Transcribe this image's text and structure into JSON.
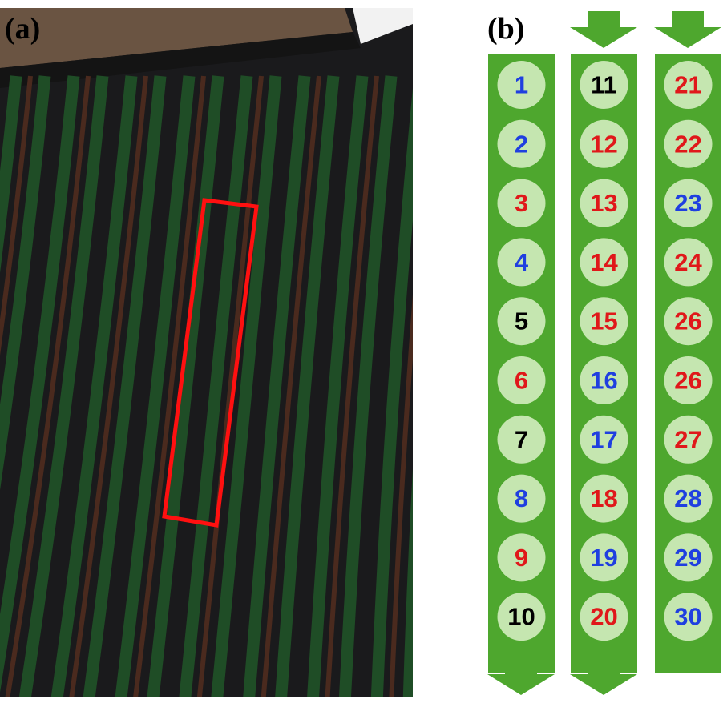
{
  "panels": {
    "a": {
      "label": "(a)"
    },
    "b": {
      "label": "(b)",
      "columns": [
        {
          "cells": [
            {
              "label": "1",
              "color": "#1f3fe0"
            },
            {
              "label": "2",
              "color": "#1f3fe0"
            },
            {
              "label": "3",
              "color": "#e0181a"
            },
            {
              "label": "4",
              "color": "#1f3fe0"
            },
            {
              "label": "5",
              "color": "#000000"
            },
            {
              "label": "6",
              "color": "#e0181a"
            },
            {
              "label": "7",
              "color": "#000000"
            },
            {
              "label": "8",
              "color": "#1f3fe0"
            },
            {
              "label": "9",
              "color": "#e0181a"
            },
            {
              "label": "10",
              "color": "#000000"
            }
          ]
        },
        {
          "cells": [
            {
              "label": "11",
              "color": "#000000"
            },
            {
              "label": "12",
              "color": "#e0181a"
            },
            {
              "label": "13",
              "color": "#e0181a"
            },
            {
              "label": "14",
              "color": "#e0181a"
            },
            {
              "label": "15",
              "color": "#e0181a"
            },
            {
              "label": "16",
              "color": "#1f3fe0"
            },
            {
              "label": "17",
              "color": "#1f3fe0"
            },
            {
              "label": "18",
              "color": "#e0181a"
            },
            {
              "label": "19",
              "color": "#1f3fe0"
            },
            {
              "label": "20",
              "color": "#e0181a"
            }
          ]
        },
        {
          "cells": [
            {
              "label": "21",
              "color": "#e0181a"
            },
            {
              "label": "22",
              "color": "#e0181a"
            },
            {
              "label": "23",
              "color": "#1f3fe0"
            },
            {
              "label": "24",
              "color": "#e0181a"
            },
            {
              "label": "26",
              "color": "#e0181a"
            },
            {
              "label": "26",
              "color": "#e0181a"
            },
            {
              "label": "27",
              "color": "#e0181a"
            },
            {
              "label": "28",
              "color": "#1f3fe0"
            },
            {
              "label": "29",
              "color": "#1f3fe0"
            },
            {
              "label": "30",
              "color": "#1f3fe0"
            }
          ]
        }
      ]
    }
  }
}
